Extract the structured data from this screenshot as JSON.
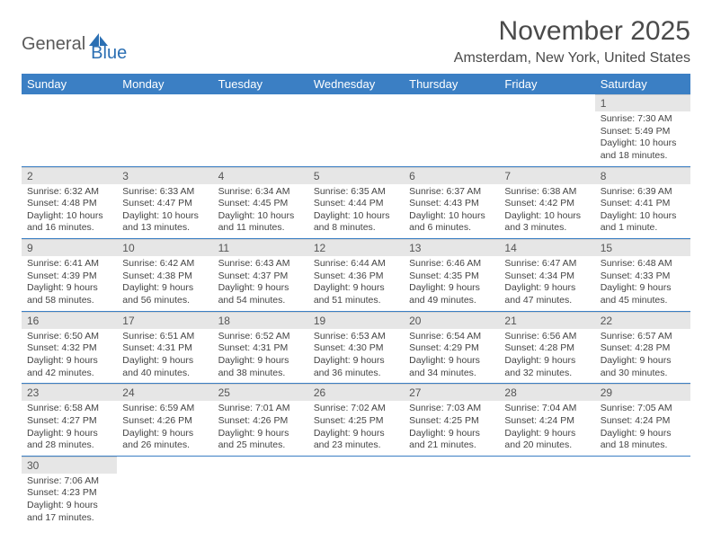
{
  "logo": {
    "part1": "General",
    "part2": "Blue"
  },
  "title": "November 2025",
  "location": "Amsterdam, New York, United States",
  "colors": {
    "header_bg": "#3b7fc4",
    "header_text": "#ffffff",
    "daynum_bg": "#e6e6e6",
    "text": "#444444",
    "row_border": "#3b7fc4",
    "logo_gray": "#5a5a5a",
    "logo_blue": "#2b6fb3"
  },
  "fonts": {
    "title_size": 30,
    "location_size": 16,
    "header_size": 13,
    "daynum_size": 12,
    "body_size": 10.5
  },
  "weekdays": [
    "Sunday",
    "Monday",
    "Tuesday",
    "Wednesday",
    "Thursday",
    "Friday",
    "Saturday"
  ],
  "weeks": [
    [
      null,
      null,
      null,
      null,
      null,
      null,
      {
        "n": "1",
        "sunrise": "Sunrise: 7:30 AM",
        "sunset": "Sunset: 5:49 PM",
        "day1": "Daylight: 10 hours",
        "day2": "and 18 minutes."
      }
    ],
    [
      {
        "n": "2",
        "sunrise": "Sunrise: 6:32 AM",
        "sunset": "Sunset: 4:48 PM",
        "day1": "Daylight: 10 hours",
        "day2": "and 16 minutes."
      },
      {
        "n": "3",
        "sunrise": "Sunrise: 6:33 AM",
        "sunset": "Sunset: 4:47 PM",
        "day1": "Daylight: 10 hours",
        "day2": "and 13 minutes."
      },
      {
        "n": "4",
        "sunrise": "Sunrise: 6:34 AM",
        "sunset": "Sunset: 4:45 PM",
        "day1": "Daylight: 10 hours",
        "day2": "and 11 minutes."
      },
      {
        "n": "5",
        "sunrise": "Sunrise: 6:35 AM",
        "sunset": "Sunset: 4:44 PM",
        "day1": "Daylight: 10 hours",
        "day2": "and 8 minutes."
      },
      {
        "n": "6",
        "sunrise": "Sunrise: 6:37 AM",
        "sunset": "Sunset: 4:43 PM",
        "day1": "Daylight: 10 hours",
        "day2": "and 6 minutes."
      },
      {
        "n": "7",
        "sunrise": "Sunrise: 6:38 AM",
        "sunset": "Sunset: 4:42 PM",
        "day1": "Daylight: 10 hours",
        "day2": "and 3 minutes."
      },
      {
        "n": "8",
        "sunrise": "Sunrise: 6:39 AM",
        "sunset": "Sunset: 4:41 PM",
        "day1": "Daylight: 10 hours",
        "day2": "and 1 minute."
      }
    ],
    [
      {
        "n": "9",
        "sunrise": "Sunrise: 6:41 AM",
        "sunset": "Sunset: 4:39 PM",
        "day1": "Daylight: 9 hours",
        "day2": "and 58 minutes."
      },
      {
        "n": "10",
        "sunrise": "Sunrise: 6:42 AM",
        "sunset": "Sunset: 4:38 PM",
        "day1": "Daylight: 9 hours",
        "day2": "and 56 minutes."
      },
      {
        "n": "11",
        "sunrise": "Sunrise: 6:43 AM",
        "sunset": "Sunset: 4:37 PM",
        "day1": "Daylight: 9 hours",
        "day2": "and 54 minutes."
      },
      {
        "n": "12",
        "sunrise": "Sunrise: 6:44 AM",
        "sunset": "Sunset: 4:36 PM",
        "day1": "Daylight: 9 hours",
        "day2": "and 51 minutes."
      },
      {
        "n": "13",
        "sunrise": "Sunrise: 6:46 AM",
        "sunset": "Sunset: 4:35 PM",
        "day1": "Daylight: 9 hours",
        "day2": "and 49 minutes."
      },
      {
        "n": "14",
        "sunrise": "Sunrise: 6:47 AM",
        "sunset": "Sunset: 4:34 PM",
        "day1": "Daylight: 9 hours",
        "day2": "and 47 minutes."
      },
      {
        "n": "15",
        "sunrise": "Sunrise: 6:48 AM",
        "sunset": "Sunset: 4:33 PM",
        "day1": "Daylight: 9 hours",
        "day2": "and 45 minutes."
      }
    ],
    [
      {
        "n": "16",
        "sunrise": "Sunrise: 6:50 AM",
        "sunset": "Sunset: 4:32 PM",
        "day1": "Daylight: 9 hours",
        "day2": "and 42 minutes."
      },
      {
        "n": "17",
        "sunrise": "Sunrise: 6:51 AM",
        "sunset": "Sunset: 4:31 PM",
        "day1": "Daylight: 9 hours",
        "day2": "and 40 minutes."
      },
      {
        "n": "18",
        "sunrise": "Sunrise: 6:52 AM",
        "sunset": "Sunset: 4:31 PM",
        "day1": "Daylight: 9 hours",
        "day2": "and 38 minutes."
      },
      {
        "n": "19",
        "sunrise": "Sunrise: 6:53 AM",
        "sunset": "Sunset: 4:30 PM",
        "day1": "Daylight: 9 hours",
        "day2": "and 36 minutes."
      },
      {
        "n": "20",
        "sunrise": "Sunrise: 6:54 AM",
        "sunset": "Sunset: 4:29 PM",
        "day1": "Daylight: 9 hours",
        "day2": "and 34 minutes."
      },
      {
        "n": "21",
        "sunrise": "Sunrise: 6:56 AM",
        "sunset": "Sunset: 4:28 PM",
        "day1": "Daylight: 9 hours",
        "day2": "and 32 minutes."
      },
      {
        "n": "22",
        "sunrise": "Sunrise: 6:57 AM",
        "sunset": "Sunset: 4:28 PM",
        "day1": "Daylight: 9 hours",
        "day2": "and 30 minutes."
      }
    ],
    [
      {
        "n": "23",
        "sunrise": "Sunrise: 6:58 AM",
        "sunset": "Sunset: 4:27 PM",
        "day1": "Daylight: 9 hours",
        "day2": "and 28 minutes."
      },
      {
        "n": "24",
        "sunrise": "Sunrise: 6:59 AM",
        "sunset": "Sunset: 4:26 PM",
        "day1": "Daylight: 9 hours",
        "day2": "and 26 minutes."
      },
      {
        "n": "25",
        "sunrise": "Sunrise: 7:01 AM",
        "sunset": "Sunset: 4:26 PM",
        "day1": "Daylight: 9 hours",
        "day2": "and 25 minutes."
      },
      {
        "n": "26",
        "sunrise": "Sunrise: 7:02 AM",
        "sunset": "Sunset: 4:25 PM",
        "day1": "Daylight: 9 hours",
        "day2": "and 23 minutes."
      },
      {
        "n": "27",
        "sunrise": "Sunrise: 7:03 AM",
        "sunset": "Sunset: 4:25 PM",
        "day1": "Daylight: 9 hours",
        "day2": "and 21 minutes."
      },
      {
        "n": "28",
        "sunrise": "Sunrise: 7:04 AM",
        "sunset": "Sunset: 4:24 PM",
        "day1": "Daylight: 9 hours",
        "day2": "and 20 minutes."
      },
      {
        "n": "29",
        "sunrise": "Sunrise: 7:05 AM",
        "sunset": "Sunset: 4:24 PM",
        "day1": "Daylight: 9 hours",
        "day2": "and 18 minutes."
      }
    ],
    [
      {
        "n": "30",
        "sunrise": "Sunrise: 7:06 AM",
        "sunset": "Sunset: 4:23 PM",
        "day1": "Daylight: 9 hours",
        "day2": "and 17 minutes."
      },
      null,
      null,
      null,
      null,
      null,
      null
    ]
  ]
}
